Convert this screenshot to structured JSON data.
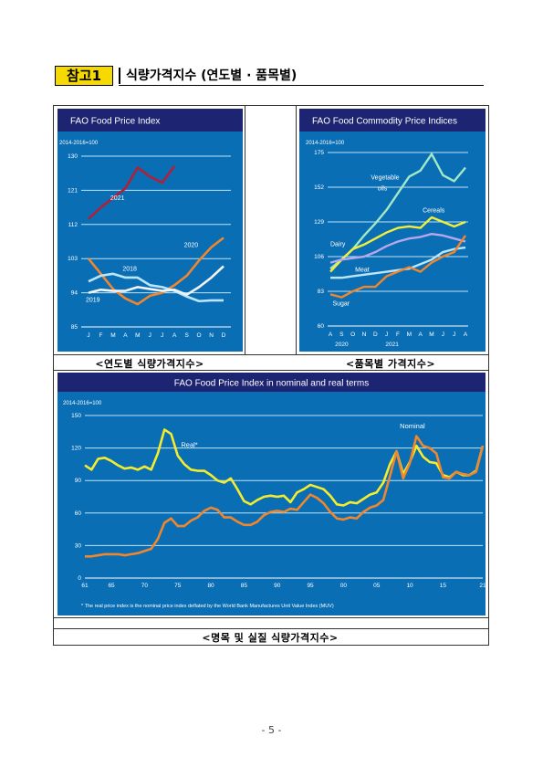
{
  "header": {
    "tag": "참고1",
    "title": "식량가격지수 (연도별 · 품목별)"
  },
  "captions": {
    "year": "<연도별 식량가격지수>",
    "commodity": "<품목별 가격지수>",
    "real": "<명목 및 실질 식량가격지수>"
  },
  "page_number": "- 5 -",
  "colors": {
    "chart_bg": "#0a6eb4",
    "title_bar": "#1d2472",
    "yellow_tag": "#f5d900"
  },
  "chart_data": [
    {
      "type": "line",
      "title": "FAO Food Price Index",
      "base_label": "2014-2016=100",
      "categories": [
        "J",
        "F",
        "M",
        "A",
        "M",
        "J",
        "J",
        "A",
        "S",
        "O",
        "N",
        "D"
      ],
      "ylim": [
        85,
        130
      ],
      "yticks": [
        "85",
        "94",
        "103",
        "112",
        "121",
        "130"
      ],
      "series": [
        {
          "name": "2021",
          "color": "#b0203a",
          "values": [
            113.5,
            116.5,
            119.0,
            121.5,
            127.0,
            124.6,
            123.0,
            127.4,
            null,
            null,
            null,
            null
          ]
        },
        {
          "name": "2020",
          "color": "#f0862e",
          "values": [
            103.0,
            99.0,
            95.0,
            92.5,
            91.0,
            93.2,
            94.0,
            96.0,
            98.5,
            102.5,
            106.0,
            108.5
          ]
        },
        {
          "name": "2018",
          "color": "#b9e6fb",
          "values": [
            97.0,
            98.5,
            99.0,
            98.0,
            98.0,
            96.0,
            95.5,
            94.5,
            93.0,
            91.8,
            92.0,
            92.0
          ]
        },
        {
          "name": "2019",
          "color": "#f3f3f3",
          "values": [
            94.0,
            94.8,
            94.5,
            94.5,
            95.5,
            95.0,
            94.5,
            94.8,
            93.5,
            95.5,
            98.0,
            101.0
          ]
        }
      ]
    },
    {
      "type": "line",
      "title": "FAO Food Commodity Price Indices",
      "base_label": "2014-2016=100",
      "categories": [
        "A",
        "S",
        "O",
        "N",
        "D",
        "J",
        "F",
        "M",
        "A",
        "M",
        "J",
        "J",
        "A"
      ],
      "year_labels": [
        "2020",
        "2021"
      ],
      "ylim": [
        60,
        175
      ],
      "yticks": [
        "60",
        "83",
        "106",
        "129",
        "152",
        "175"
      ],
      "series": [
        {
          "name": "Vegetable oils",
          "color": "#a3e8c5",
          "values": [
            98,
            104,
            111,
            120,
            128,
            137,
            148,
            159,
            163,
            174,
            160,
            156,
            165
          ]
        },
        {
          "name": "Cereals",
          "color": "#f2ee3a",
          "values": [
            96,
            104,
            111,
            114,
            118,
            122,
            125,
            126,
            125,
            132,
            129,
            126,
            129
          ]
        },
        {
          "name": "Dairy",
          "color": "#b7a7ec",
          "values": [
            102,
            104,
            105,
            106,
            109,
            113,
            116,
            118,
            119,
            121,
            120,
            118,
            116
          ]
        },
        {
          "name": "Meat",
          "color": "#b9e6fb",
          "values": [
            92,
            92,
            93,
            94,
            95,
            96,
            97,
            98,
            101,
            104,
            109,
            111,
            112
          ]
        },
        {
          "name": "Sugar",
          "color": "#f0862e",
          "values": [
            81,
            79,
            83,
            86,
            86,
            93,
            96,
            99,
            96,
            102,
            106,
            109,
            120
          ]
        }
      ]
    },
    {
      "type": "line",
      "title": "FAO Food Price Index in nominal and real terms",
      "base_label": "2014-2016=100",
      "x": [
        1961,
        1962,
        1963,
        1964,
        1965,
        1966,
        1967,
        1968,
        1969,
        1970,
        1971,
        1972,
        1973,
        1974,
        1975,
        1976,
        1977,
        1978,
        1979,
        1980,
        1981,
        1982,
        1983,
        1984,
        1985,
        1986,
        1987,
        1988,
        1989,
        1990,
        1991,
        1992,
        1993,
        1994,
        1995,
        1996,
        1997,
        1998,
        1999,
        2000,
        2001,
        2002,
        2003,
        2004,
        2005,
        2006,
        2007,
        2008,
        2009,
        2010,
        2011,
        2012,
        2013,
        2014,
        2015,
        2016,
        2017,
        2018,
        2019,
        2020,
        2021
      ],
      "xticks": [
        "61",
        "65",
        "70",
        "75",
        "80",
        "85",
        "90",
        "95",
        "00",
        "05",
        "10",
        "15",
        "21"
      ],
      "xtick_years": [
        1961,
        1965,
        1970,
        1975,
        1980,
        1985,
        1990,
        1995,
        2000,
        2005,
        2010,
        2015,
        2021
      ],
      "ylim": [
        0,
        150
      ],
      "yticks": [
        "0",
        "30",
        "60",
        "90",
        "120",
        "150"
      ],
      "series": [
        {
          "name": "Real*",
          "color": "#f5ec2e",
          "values": [
            104,
            100,
            110,
            111,
            108,
            104,
            101,
            102,
            100,
            103,
            100,
            115,
            137,
            133,
            113,
            105,
            100,
            99,
            99,
            95,
            90,
            88,
            92,
            82,
            71,
            68,
            72,
            75,
            76,
            75,
            76,
            70,
            79,
            82,
            86,
            84,
            82,
            76,
            68,
            67,
            70,
            69,
            73,
            77,
            79,
            88,
            105,
            117,
            96,
            107,
            122,
            112,
            107,
            106,
            95,
            93,
            98,
            95,
            95,
            99,
            122
          ]
        },
        {
          "name": "Nominal",
          "color": "#f0862e",
          "values": [
            20,
            20,
            21,
            22,
            22,
            22,
            21,
            22,
            23,
            25,
            27,
            36,
            51,
            55,
            48,
            48,
            53,
            56,
            62,
            65,
            63,
            56,
            56,
            52,
            49,
            49,
            52,
            58,
            61,
            62,
            61,
            64,
            63,
            70,
            77,
            74,
            69,
            61,
            55,
            54,
            56,
            55,
            61,
            65,
            67,
            72,
            94,
            117,
            92,
            106,
            131,
            122,
            120,
            115,
            93,
            92,
            98,
            96,
            95,
            98,
            122
          ]
        }
      ],
      "footnote": "* The real price index is the nominal price index deflated by the World Bank Manufactures Unit Value Index (MUV)"
    }
  ]
}
